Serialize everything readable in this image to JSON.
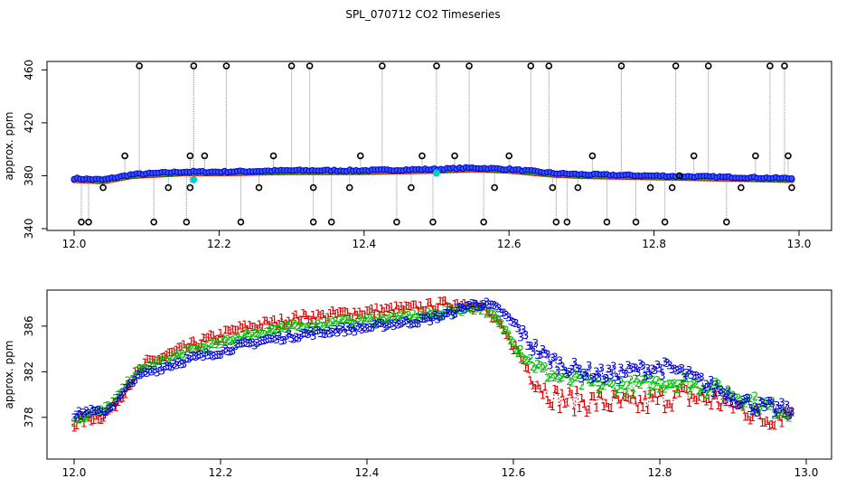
{
  "title": "SPL_070712  CO2 Timeseries",
  "colors": {
    "s1": "#dd0000",
    "s2": "#00bb00",
    "s3": "#0000dd",
    "outlier": "#000000",
    "flag": "#00cccc"
  },
  "chart_data": [
    {
      "type": "scatter",
      "title": "SPL_070712  CO2 Timeseries",
      "xlabel": "",
      "ylabel": "approx. ppm",
      "xlim": [
        12.0,
        13.0
      ],
      "ylim": [
        340,
        465
      ],
      "xticks": [
        12.0,
        12.2,
        12.4,
        12.6,
        12.8,
        13.0
      ],
      "xtick_labels": [
        "12.0",
        "12.2",
        "12.4",
        "12.6",
        "12.8",
        "13.0"
      ],
      "yticks": [
        340,
        380,
        420,
        460
      ],
      "ytick_labels": [
        "340",
        "380",
        "420",
        "460"
      ],
      "grid": false,
      "legend": "none",
      "series": [
        {
          "marker": "o",
          "color": "blue",
          "description": "main CO2 readings",
          "x_start": 12.0,
          "x_end": 12.99,
          "y_anchor_x": [
            12.0,
            12.04,
            12.08,
            12.15,
            12.2,
            12.3,
            12.4,
            12.5,
            12.55,
            12.6,
            12.66,
            12.7,
            12.8,
            12.9,
            12.99
          ],
          "y_anchor_y": [
            378,
            377,
            381,
            383,
            383,
            384,
            384,
            385,
            386,
            385,
            382,
            381,
            380,
            379,
            378
          ]
        },
        {
          "marker": "o",
          "color": "black",
          "description": "outlier readings",
          "x": [
            12.01,
            12.02,
            12.04,
            12.07,
            12.09,
            12.11,
            12.13,
            12.155,
            12.16,
            12.16,
            12.165,
            12.18,
            12.21,
            12.23,
            12.255,
            12.275,
            12.3,
            12.325,
            12.33,
            12.33,
            12.355,
            12.38,
            12.395,
            12.425,
            12.445,
            12.465,
            12.48,
            12.495,
            12.5,
            12.525,
            12.545,
            12.565,
            12.58,
            12.6,
            12.63,
            12.655,
            12.66,
            12.665,
            12.68,
            12.695,
            12.715,
            12.735,
            12.755,
            12.775,
            12.795,
            12.815,
            12.825,
            12.83,
            12.835,
            12.855,
            12.875,
            12.9,
            12.92,
            12.94,
            12.96,
            12.98,
            12.985,
            12.99
          ],
          "y": [
            345,
            345,
            371,
            395,
            463,
            345,
            371,
            345,
            371,
            395,
            463,
            395,
            463,
            345,
            371,
            395,
            463,
            463,
            371,
            345,
            345,
            371,
            395,
            463,
            345,
            371,
            395,
            345,
            463,
            395,
            463,
            345,
            371,
            395,
            463,
            463,
            371,
            345,
            345,
            371,
            395,
            345,
            463,
            345,
            371,
            345,
            371,
            463,
            380,
            395,
            463,
            345,
            371,
            395,
            463,
            463,
            395,
            371
          ],
          "spikes": true
        },
        {
          "marker": "o",
          "color": "cyan",
          "description": "flagged readings",
          "x": [
            12.165,
            12.5
          ],
          "y": [
            377,
            382
          ]
        }
      ]
    },
    {
      "type": "line",
      "xlabel": "",
      "ylabel": "approx. ppm",
      "xlim": [
        12.0,
        13.0
      ],
      "ylim": [
        374.5,
        389
      ],
      "xticks": [
        12.0,
        12.2,
        12.4,
        12.6,
        12.8,
        13.0
      ],
      "xtick_labels": [
        "12.0",
        "12.2",
        "12.4",
        "12.6",
        "12.8",
        "13.0"
      ],
      "yticks": [
        378,
        382,
        386
      ],
      "ytick_labels": [
        "378",
        "382",
        "386"
      ],
      "grid": false,
      "legend": "none",
      "x": [
        12.0,
        12.02,
        12.04,
        12.06,
        12.08,
        12.1,
        12.12,
        12.14,
        12.16,
        12.18,
        12.2,
        12.22,
        12.24,
        12.26,
        12.28,
        12.3,
        12.32,
        12.34,
        12.36,
        12.38,
        12.4,
        12.42,
        12.44,
        12.46,
        12.48,
        12.5,
        12.52,
        12.54,
        12.56,
        12.58,
        12.6,
        12.62,
        12.64,
        12.66,
        12.68,
        12.7,
        12.72,
        12.74,
        12.76,
        12.78,
        12.8,
        12.82,
        12.84,
        12.86,
        12.88,
        12.9,
        12.92,
        12.94,
        12.96,
        12.98
      ],
      "series": [
        {
          "marker": "1",
          "color": "red",
          "values": [
            377.5,
            378.0,
            378.2,
            379.5,
            381.5,
            382.8,
            383.3,
            383.8,
            384.3,
            384.8,
            385.2,
            385.7,
            386.0,
            386.2,
            386.4,
            386.7,
            386.9,
            386.9,
            387.1,
            387.2,
            387.3,
            387.4,
            387.5,
            387.6,
            387.7,
            387.9,
            388.0,
            388.1,
            387.6,
            386.1,
            384.3,
            382.3,
            380.6,
            379.7,
            379.5,
            379.4,
            379.4,
            379.3,
            379.1,
            379.3,
            379.6,
            379.9,
            379.9,
            379.7,
            379.5,
            379.1,
            378.7,
            377.8,
            378.3,
            378.5
          ]
        },
        {
          "marker": "2",
          "color": "green",
          "values": [
            377.8,
            378.4,
            378.6,
            379.8,
            381.6,
            382.5,
            383.0,
            383.4,
            383.9,
            384.2,
            384.6,
            385.0,
            385.3,
            385.6,
            385.8,
            386.0,
            386.1,
            386.2,
            386.4,
            386.5,
            386.6,
            386.7,
            386.8,
            386.9,
            387.0,
            387.2,
            387.4,
            387.7,
            387.6,
            386.4,
            384.8,
            383.2,
            382.1,
            381.6,
            381.3,
            381.1,
            380.9,
            380.8,
            380.8,
            380.9,
            381.1,
            381.2,
            381.0,
            380.7,
            380.5,
            380.1,
            379.6,
            379.1,
            378.8,
            378.6
          ]
        },
        {
          "marker": "3",
          "color": "blue",
          "values": [
            378.2,
            378.6,
            378.4,
            379.6,
            381.3,
            382.0,
            382.4,
            382.8,
            383.2,
            383.5,
            383.8,
            384.2,
            384.5,
            384.8,
            385.0,
            385.2,
            385.4,
            385.5,
            385.7,
            385.8,
            385.9,
            386.1,
            386.3,
            386.4,
            386.6,
            386.9,
            387.3,
            387.9,
            388.0,
            387.5,
            386.3,
            384.7,
            383.5,
            382.8,
            382.3,
            382.0,
            381.8,
            381.9,
            382.1,
            382.3,
            382.4,
            382.2,
            381.6,
            381.0,
            380.5,
            379.9,
            379.3,
            378.9,
            378.8,
            378.6
          ]
        }
      ]
    }
  ]
}
